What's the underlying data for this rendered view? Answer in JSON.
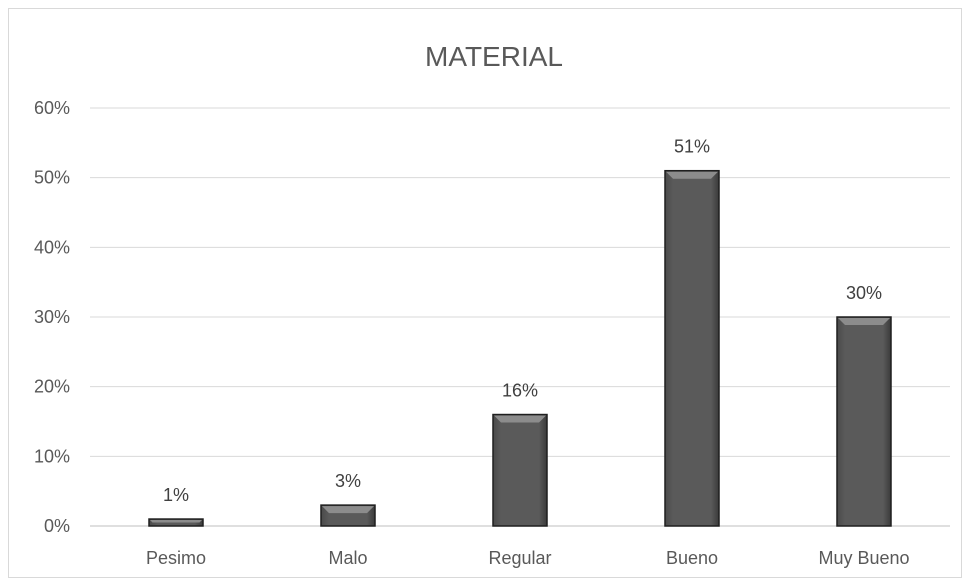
{
  "chart_data": {
    "type": "bar",
    "title": "MATERIAL",
    "xlabel": "",
    "ylabel": "",
    "categories": [
      "Pesimo",
      "Malo",
      "Regular",
      "Bueno",
      "Muy Bueno"
    ],
    "values": [
      1,
      3,
      16,
      51,
      30
    ],
    "data_labels": [
      "1%",
      "3%",
      "16%",
      "51%",
      "30%"
    ],
    "ylim": [
      0,
      60
    ],
    "yticks": [
      0,
      10,
      20,
      30,
      40,
      50,
      60
    ],
    "ytick_labels": [
      "0%",
      "10%",
      "20%",
      "30%",
      "40%",
      "50%",
      "60%"
    ],
    "grid": true,
    "legend": "none",
    "bar_color": "#5a5a5a",
    "bar_edge_color": "#1f1f1f",
    "bar_highlight_color": "#8c8c8c"
  }
}
